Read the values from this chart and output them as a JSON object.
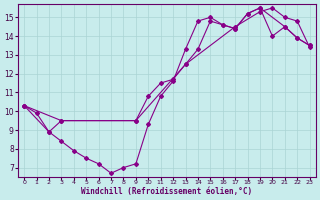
{
  "title": "",
  "xlabel": "Windchill (Refroidissement éolien,°C)",
  "ylabel": "",
  "bg_color": "#c8ecec",
  "line_color": "#880088",
  "grid_color": "#aad4d4",
  "axis_color": "#660066",
  "tick_color": "#440044",
  "xlim": [
    -0.5,
    23.5
  ],
  "ylim": [
    6.5,
    15.7
  ],
  "xticks": [
    0,
    1,
    2,
    3,
    4,
    5,
    6,
    7,
    8,
    9,
    10,
    11,
    12,
    13,
    14,
    15,
    16,
    17,
    18,
    19,
    20,
    21,
    22,
    23
  ],
  "yticks": [
    7,
    8,
    9,
    10,
    11,
    12,
    13,
    14,
    15
  ],
  "line1_x": [
    0,
    1,
    2,
    3,
    4,
    5,
    6,
    7,
    8,
    9,
    10,
    11,
    12,
    13,
    14,
    15,
    16,
    17,
    18,
    19,
    20,
    21,
    22,
    23
  ],
  "line1_y": [
    10.3,
    9.9,
    8.9,
    8.4,
    7.9,
    7.5,
    7.2,
    6.7,
    7.0,
    7.2,
    9.3,
    10.8,
    11.6,
    13.3,
    14.8,
    15.0,
    14.6,
    14.4,
    15.2,
    15.5,
    14.0,
    14.5,
    13.9,
    13.5
  ],
  "line2_x": [
    0,
    2,
    3,
    9,
    10,
    11,
    12,
    13,
    14,
    15,
    16,
    17,
    18,
    19,
    21,
    22,
    23
  ],
  "line2_y": [
    10.3,
    8.9,
    9.5,
    9.5,
    10.8,
    11.5,
    11.7,
    12.5,
    13.3,
    14.8,
    14.6,
    14.4,
    15.2,
    15.5,
    14.5,
    13.9,
    13.5
  ],
  "line3_x": [
    0,
    3,
    9,
    13,
    17,
    19,
    20,
    21,
    22,
    23
  ],
  "line3_y": [
    10.3,
    9.5,
    9.5,
    12.5,
    14.5,
    15.3,
    15.5,
    15.0,
    14.8,
    13.4
  ]
}
